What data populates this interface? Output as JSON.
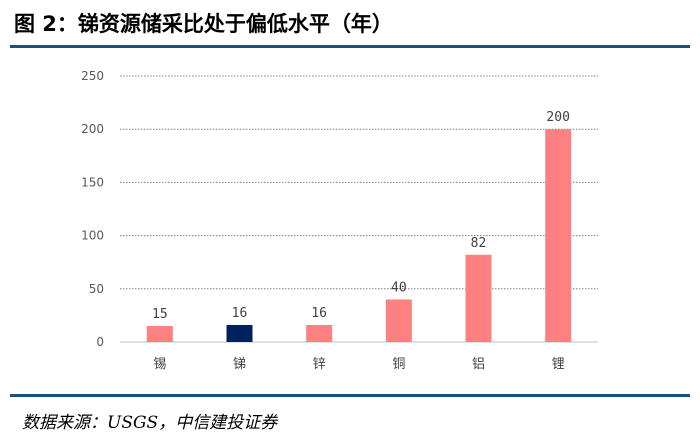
{
  "figure": {
    "title": "图 2：锑资源储采比处于偏低水平（年）",
    "source": "数据来源：USGS，中信建投证券"
  },
  "colors": {
    "rule": "#1f4e79",
    "bar_default": "#ff8080",
    "bar_highlight": "#002060",
    "gridline": "#7f7f7f"
  },
  "chart_data": {
    "type": "bar",
    "title": "",
    "xlabel": "",
    "ylabel": "",
    "categories": [
      "锡",
      "锑",
      "锌",
      "铜",
      "铝",
      "锂"
    ],
    "values": [
      15,
      16,
      16,
      40,
      82,
      200
    ],
    "data_labels": [
      "15",
      "16",
      "16",
      "40",
      "82",
      "200"
    ],
    "highlight_category": "锑",
    "ylim": [
      0,
      250
    ],
    "yticks": [
      0,
      50,
      100,
      150,
      200,
      250
    ],
    "ytick_labels": [
      "0",
      "50",
      "100",
      "150",
      "200",
      "250"
    ],
    "grid": "horizontal dotted",
    "legend": "none"
  }
}
